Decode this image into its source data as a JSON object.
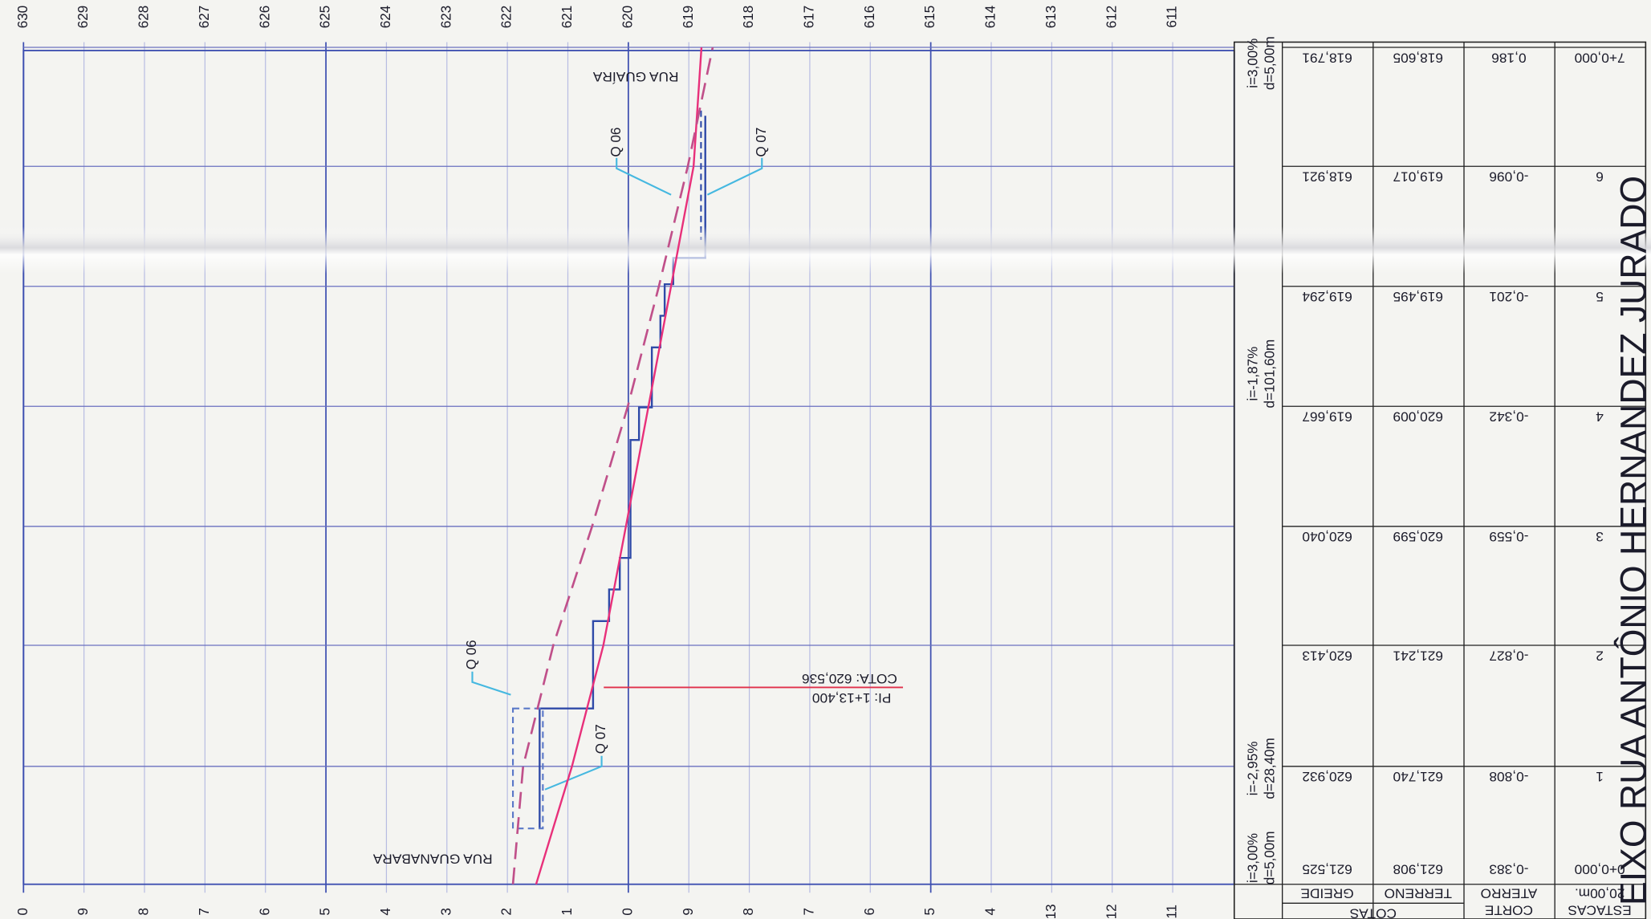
{
  "title": "EIXO RUA ANTÔNIO HERNANDEZ JURADO",
  "elevation_axis": {
    "top_labels": [
      "630",
      "629",
      "628",
      "627",
      "626",
      "625",
      "624",
      "623",
      "622",
      "621",
      "620",
      "619",
      "618",
      "617",
      "616",
      "615",
      "614",
      "613",
      "612",
      "611"
    ],
    "bottom_labels": [
      "0",
      "9",
      "8",
      "7",
      "6",
      "5",
      "4",
      "3",
      "2",
      "1",
      "0",
      "9",
      "8",
      "7",
      "6",
      "5",
      "4",
      "13",
      "12",
      "11"
    ]
  },
  "profile": {
    "street_left": "RUA GUANABARA",
    "street_right": "RUA GUAÍRA",
    "markers": [
      "Q 06",
      "Q 07",
      "Q 06",
      "Q 07"
    ],
    "pi": "PI: 1+13,400",
    "cota": "COTA: 620,536"
  },
  "slopes": [
    {
      "i": "i=3,00%",
      "d": "d=5,00m"
    },
    {
      "i": "i=-2,95%",
      "d": "d=28,40m"
    },
    {
      "i": "i=-1,87%",
      "d": "d=101,60m"
    },
    {
      "i": "i=3,00%",
      "d": "d=5,00m"
    }
  ],
  "table": {
    "header": {
      "cotas": "COTAS",
      "greide": "GREIDE",
      "terreno": "TERRENO",
      "corte": "CORTE",
      "aterro": "ATERRO",
      "estacas": "ESTACAS",
      "interval": "20,00m."
    },
    "stations": [
      {
        "estaca": "0+0,000",
        "greide": "621,525",
        "terreno": "621,908",
        "corte_aterro": "-0,383"
      },
      {
        "estaca": "1",
        "greide": "620,932",
        "terreno": "621,740",
        "corte_aterro": "-0,808"
      },
      {
        "estaca": "2",
        "greide": "620,413",
        "terreno": "621,241",
        "corte_aterro": "-0,827"
      },
      {
        "estaca": "3",
        "greide": "620,040",
        "terreno": "620,599",
        "corte_aterro": "-0,559"
      },
      {
        "estaca": "4",
        "greide": "619,667",
        "terreno": "620,009",
        "corte_aterro": "-0,342"
      },
      {
        "estaca": "5",
        "greide": "619,294",
        "terreno": "619,495",
        "corte_aterro": "-0,201"
      },
      {
        "estaca": "6",
        "greide": "618,921",
        "terreno": "619,017",
        "corte_aterro": "-0,096"
      },
      {
        "estaca": "7+0,000",
        "greide": "618,791",
        "terreno": "618,605",
        "corte_aterro": "0,186"
      }
    ]
  }
}
